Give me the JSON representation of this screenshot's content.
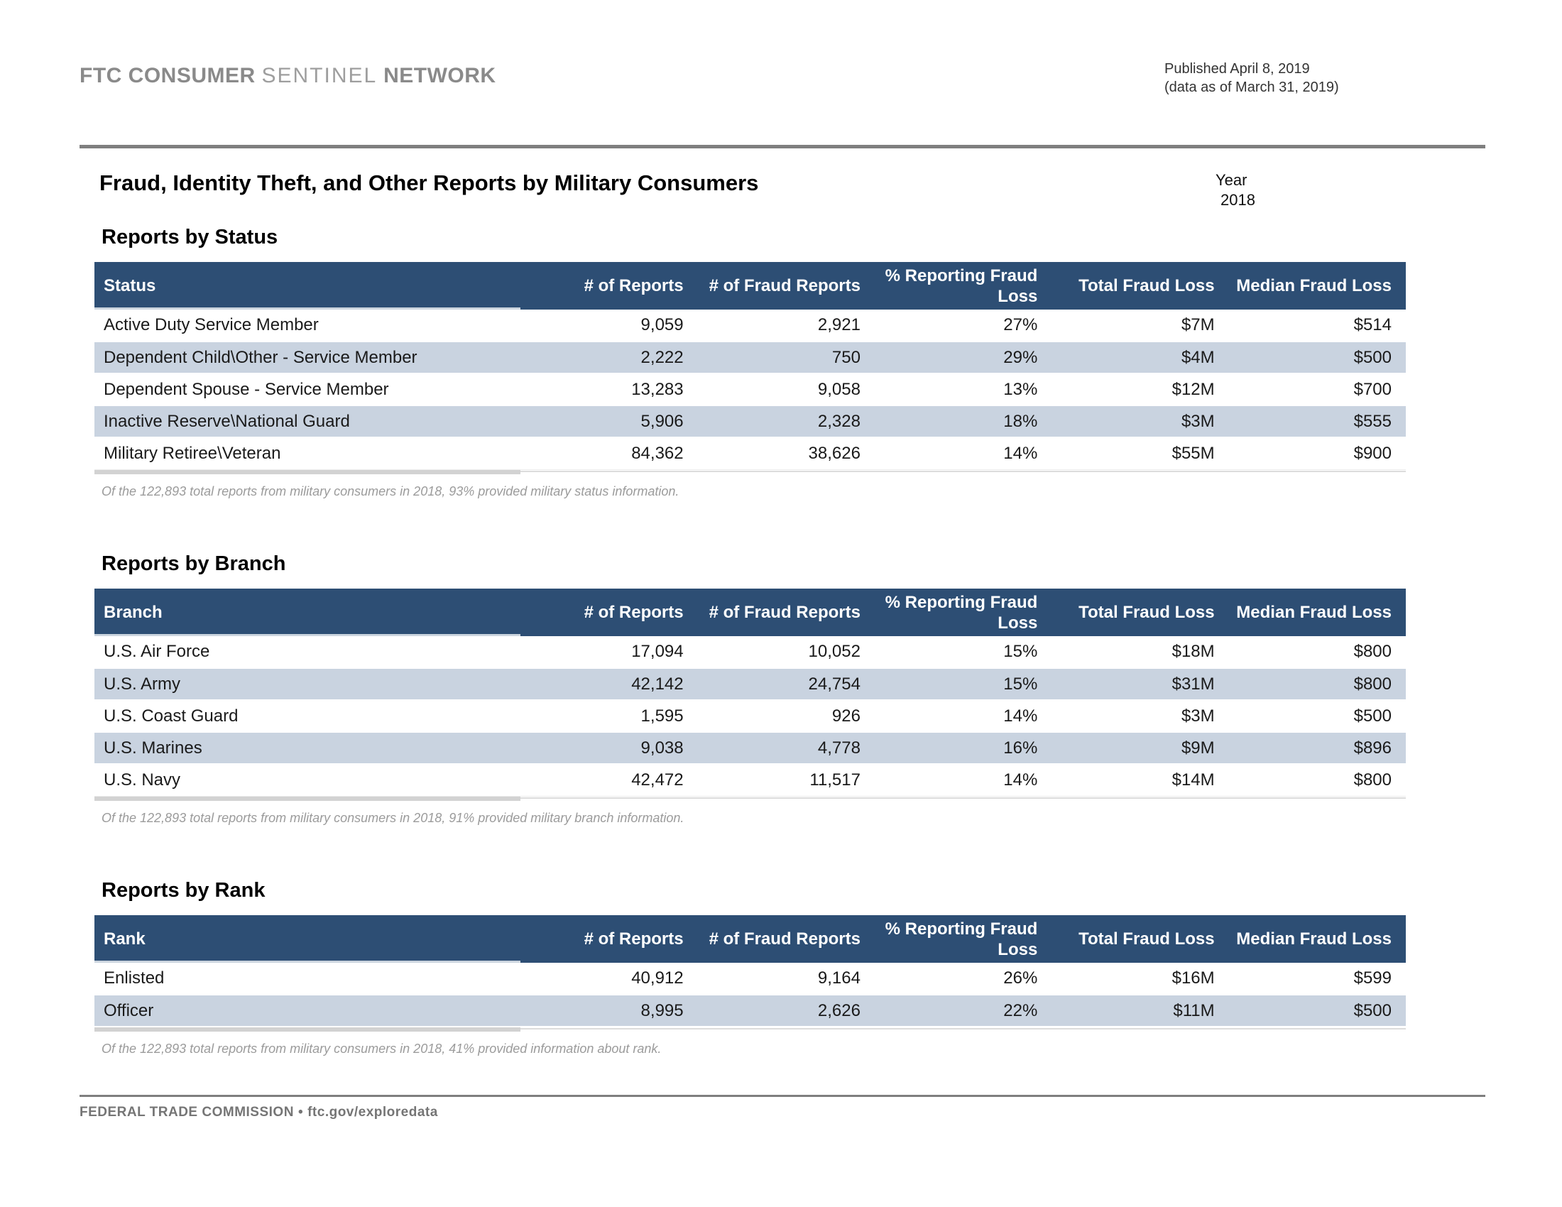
{
  "header": {
    "brand_bold1": "FTC CONSUMER",
    "brand_light": "SENTINEL",
    "brand_bold2": "NETWORK",
    "published_line1": "Published April 8, 2019",
    "published_line2": "(data as of March 31, 2019)"
  },
  "page": {
    "title": "Fraud, Identity Theft, and Other Reports by Military Consumers",
    "year_label": "Year",
    "year_value": "2018"
  },
  "colors": {
    "header_navy": "#2d4e74",
    "alt_row_blue": "#c9d3e0",
    "rule_gray": "#7f7f7f"
  },
  "sections": [
    {
      "title": "Reports by Status",
      "columns": [
        "Status",
        "# of Reports",
        "# of Fraud Reports",
        "% Reporting Fraud Loss",
        "Total Fraud Loss",
        "Median Fraud Loss"
      ],
      "rows": [
        [
          "Active Duty Service Member",
          "9,059",
          "2,921",
          "27%",
          "$7M",
          "$514"
        ],
        [
          "Dependent Child\\Other - Service Member",
          "2,222",
          "750",
          "29%",
          "$4M",
          "$500"
        ],
        [
          "Dependent Spouse - Service Member",
          "13,283",
          "9,058",
          "13%",
          "$12M",
          "$700"
        ],
        [
          "Inactive Reserve\\National Guard",
          "5,906",
          "2,328",
          "18%",
          "$3M",
          "$555"
        ],
        [
          "Military Retiree\\Veteran",
          "84,362",
          "38,626",
          "14%",
          "$55M",
          "$900"
        ]
      ],
      "footnote": "Of the 122,893 total reports from military consumers in 2018, 93% provided military status information."
    },
    {
      "title": "Reports by Branch",
      "columns": [
        "Branch",
        "# of Reports",
        "# of Fraud Reports",
        "% Reporting Fraud Loss",
        "Total Fraud Loss",
        "Median Fraud Loss"
      ],
      "rows": [
        [
          "U.S. Air Force",
          "17,094",
          "10,052",
          "15%",
          "$18M",
          "$800"
        ],
        [
          "U.S. Army",
          "42,142",
          "24,754",
          "15%",
          "$31M",
          "$800"
        ],
        [
          "U.S. Coast Guard",
          "1,595",
          "926",
          "14%",
          "$3M",
          "$500"
        ],
        [
          "U.S. Marines",
          "9,038",
          "4,778",
          "16%",
          "$9M",
          "$896"
        ],
        [
          "U.S. Navy",
          "42,472",
          "11,517",
          "14%",
          "$14M",
          "$800"
        ]
      ],
      "footnote": "Of the 122,893 total reports from military consumers in 2018, 91% provided military branch information."
    },
    {
      "title": "Reports by Rank",
      "columns": [
        "Rank",
        "# of Reports",
        "# of Fraud Reports",
        "% Reporting Fraud Loss",
        "Total Fraud Loss",
        "Median Fraud Loss"
      ],
      "rows": [
        [
          "Enlisted",
          "40,912",
          "9,164",
          "26%",
          "$16M",
          "$599"
        ],
        [
          "Officer",
          "8,995",
          "2,626",
          "22%",
          "$11M",
          "$500"
        ]
      ],
      "footnote": "Of the 122,893 total reports from military consumers in 2018, 41% provided information about rank."
    }
  ],
  "footer": {
    "agency": "FEDERAL TRADE COMMISSION",
    "bullet": "•",
    "link": "ftc.gov/exploredata"
  }
}
